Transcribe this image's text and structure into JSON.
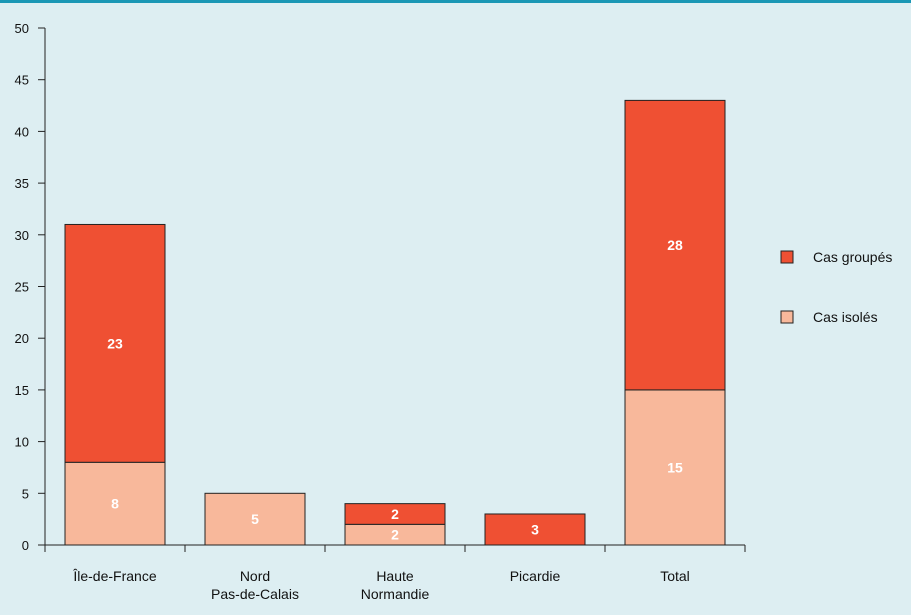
{
  "chart_data": {
    "type": "bar",
    "stacked": true,
    "categories": [
      [
        "Île-de-France"
      ],
      [
        "Nord",
        "Pas-de-Calais"
      ],
      [
        "Haute",
        "Normandie"
      ],
      [
        "Picardie"
      ],
      [
        "Total"
      ]
    ],
    "series": [
      {
        "name": "Cas isolés",
        "color": "#f8b89b",
        "values": [
          8,
          5,
          2,
          0,
          15
        ]
      },
      {
        "name": "Cas groupés",
        "color": "#ef5033",
        "values": [
          23,
          0,
          2,
          3,
          28
        ]
      }
    ],
    "ylim": [
      0,
      50
    ],
    "yticks": [
      0,
      5,
      10,
      15,
      20,
      25,
      30,
      35,
      40,
      45,
      50
    ],
    "legend": {
      "position": "right",
      "order": [
        "Cas groupés",
        "Cas isolés"
      ]
    },
    "grid": false,
    "title": "",
    "xlabel": "",
    "ylabel": ""
  }
}
